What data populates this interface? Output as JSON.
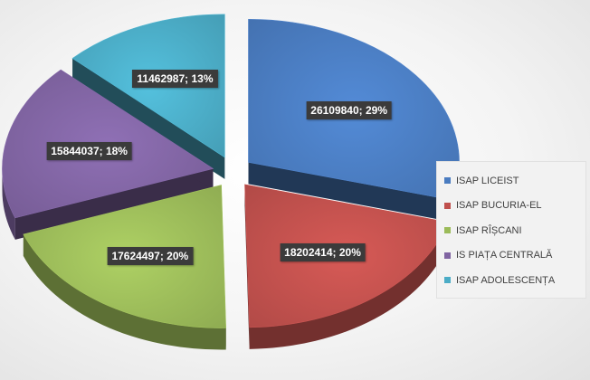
{
  "chart_data": {
    "type": "pie",
    "style": "3d-exploded",
    "title": "",
    "slices": [
      {
        "name": "ISAP LICEIST",
        "value": 26109840,
        "percent": "29%",
        "label": "26109840; 29%",
        "color": "#4a7cc0"
      },
      {
        "name": "ISAP BUCURIA-EL",
        "value": 18202414,
        "percent": "20%",
        "label": "18202414; 20%",
        "color": "#c0504d"
      },
      {
        "name": "ISAP RÎȘCANI",
        "value": 17624497,
        "percent": "20%",
        "label": "17624497; 20%",
        "color": "#9bbb59"
      },
      {
        "name": "IS PIAȚA CENTRALĂ",
        "value": 15844037,
        "percent": "18%",
        "label": "15844037; 18%",
        "color": "#8064a2"
      },
      {
        "name": "ISAP ADOLESCENȚA",
        "value": 11462987,
        "percent": "13%",
        "label": "11462987; 13%",
        "color": "#4bacc6"
      }
    ],
    "legend_position": "right"
  }
}
